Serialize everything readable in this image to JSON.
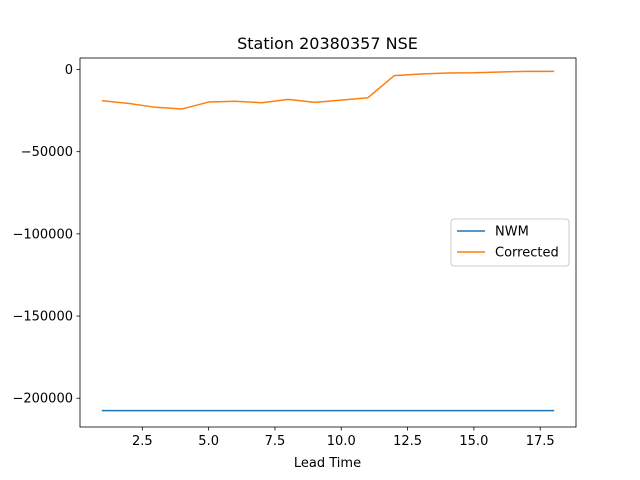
{
  "chart_data": {
    "type": "line",
    "title": "Station 20380357 NSE",
    "xlabel": "Lead Time",
    "ylabel": "",
    "xlim": [
      0.15,
      18.85
    ],
    "ylim": [
      -217500,
      7000
    ],
    "xticks": [
      2.5,
      5.0,
      7.5,
      10.0,
      12.5,
      15.0,
      17.5
    ],
    "xtick_labels": [
      "2.5",
      "5.0",
      "7.5",
      "10.0",
      "12.5",
      "15.0",
      "17.5"
    ],
    "yticks": [
      0,
      -50000,
      -100000,
      -150000,
      -200000
    ],
    "ytick_labels": [
      "0",
      "−50000",
      "−100000",
      "−150000",
      "−200000"
    ],
    "x": [
      1,
      2,
      3,
      4,
      5,
      6,
      7,
      8,
      9,
      10,
      11,
      12,
      13,
      14,
      15,
      16,
      17,
      18
    ],
    "series": [
      {
        "name": "NWM",
        "color": "#1f77b4",
        "values": [
          -207500,
          -207500,
          -207500,
          -207500,
          -207500,
          -207500,
          -207500,
          -207500,
          -207500,
          -207500,
          -207500,
          -207500,
          -207500,
          -207500,
          -207500,
          -207500,
          -207500,
          -207500
        ]
      },
      {
        "name": "Corrected",
        "color": "#ff7f0e",
        "values": [
          -19000,
          -20700,
          -23000,
          -24000,
          -19800,
          -19300,
          -20200,
          -18200,
          -20000,
          -18600,
          -17200,
          -3700,
          -2700,
          -2100,
          -2000,
          -1500,
          -1100,
          -1100
        ]
      }
    ],
    "legend": {
      "position": "center-right",
      "entries": [
        "NWM",
        "Corrected"
      ]
    },
    "grid": false
  }
}
